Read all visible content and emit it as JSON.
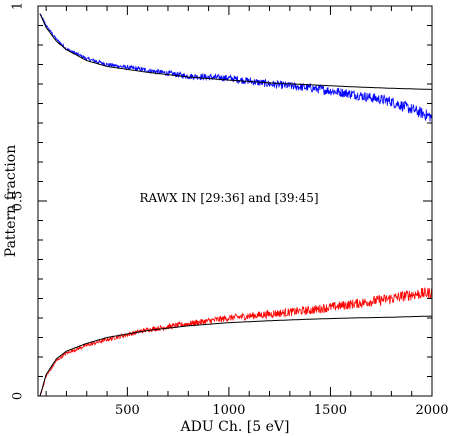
{
  "chart_data": {
    "type": "line",
    "xlabel": "ADU Ch. [5 eV]",
    "ylabel": "Pattern fraction",
    "xlim": [
      60,
      2000
    ],
    "ylim": [
      0,
      1
    ],
    "x_ticks": [
      500,
      1000,
      1500,
      2000
    ],
    "x_tick_labels": [
      "500",
      "1000",
      "1500",
      "2000"
    ],
    "y_ticks": [
      0,
      0.5,
      1
    ],
    "y_tick_labels": [
      "0",
      "0.5",
      "1"
    ],
    "annotation": "RAWX IN [29:36] and [39:45]",
    "grid": false,
    "legend": "none",
    "series": [
      {
        "color": "#0000ff",
        "style": "noisy-data",
        "x": [
          70,
          100,
          150,
          200,
          300,
          400,
          600,
          800,
          1000,
          1200,
          1400,
          1600,
          1800,
          1900,
          2000
        ],
        "y": [
          0.98,
          0.95,
          0.915,
          0.89,
          0.865,
          0.85,
          0.835,
          0.82,
          0.815,
          0.8,
          0.79,
          0.775,
          0.755,
          0.735,
          0.715
        ]
      },
      {
        "color": "#000000",
        "style": "model",
        "x": [
          70,
          100,
          150,
          200,
          300,
          400,
          600,
          800,
          1000,
          1200,
          1400,
          1600,
          1800,
          2000
        ],
        "y": [
          0.98,
          0.945,
          0.91,
          0.888,
          0.86,
          0.845,
          0.83,
          0.818,
          0.81,
          0.803,
          0.798,
          0.793,
          0.789,
          0.786
        ]
      },
      {
        "color": "#ff0000",
        "style": "noisy-data",
        "x": [
          70,
          100,
          150,
          200,
          300,
          400,
          600,
          800,
          1000,
          1200,
          1400,
          1600,
          1800,
          1900,
          2000
        ],
        "y": [
          0.0,
          0.05,
          0.09,
          0.11,
          0.13,
          0.145,
          0.17,
          0.185,
          0.2,
          0.21,
          0.22,
          0.235,
          0.25,
          0.26,
          0.265
        ]
      },
      {
        "color": "#000000",
        "style": "model",
        "x": [
          70,
          100,
          150,
          200,
          300,
          400,
          600,
          800,
          1000,
          1200,
          1400,
          1600,
          1800,
          2000
        ],
        "y": [
          0.0,
          0.055,
          0.095,
          0.115,
          0.135,
          0.15,
          0.168,
          0.18,
          0.188,
          0.193,
          0.197,
          0.2,
          0.202,
          0.205
        ]
      }
    ]
  }
}
